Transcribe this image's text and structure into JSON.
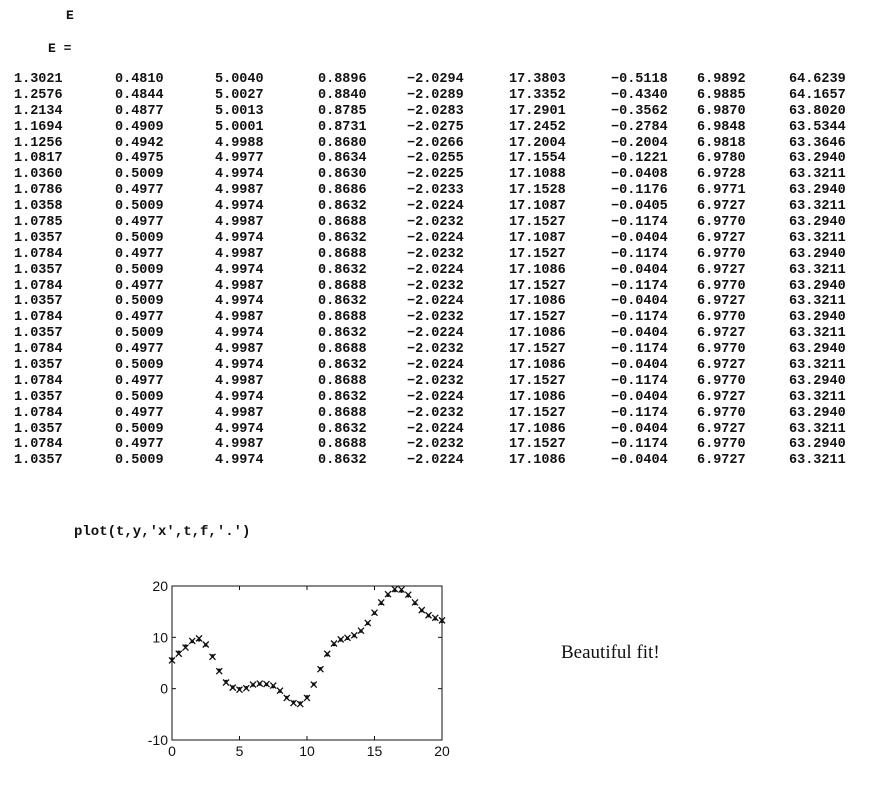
{
  "variable_name": "E",
  "variable_display": "E =",
  "matrix_rows": [
    [
      "1.3021",
      "0.4810",
      "5.0040",
      "0.8896",
      "−2.0294",
      "17.3803",
      "−0.5118",
      "6.9892",
      "64.6239"
    ],
    [
      "1.2576",
      "0.4844",
      "5.0027",
      "0.8840",
      "−2.0289",
      "17.3352",
      "−0.4340",
      "6.9885",
      "64.1657"
    ],
    [
      "1.2134",
      "0.4877",
      "5.0013",
      "0.8785",
      "−2.0283",
      "17.2901",
      "−0.3562",
      "6.9870",
      "63.8020"
    ],
    [
      "1.1694",
      "0.4909",
      "5.0001",
      "0.8731",
      "−2.0275",
      "17.2452",
      "−0.2784",
      "6.9848",
      "63.5344"
    ],
    [
      "1.1256",
      "0.4942",
      "4.9988",
      "0.8680",
      "−2.0266",
      "17.2004",
      "−0.2004",
      "6.9818",
      "63.3646"
    ],
    [
      "1.0817",
      "0.4975",
      "4.9977",
      "0.8634",
      "−2.0255",
      "17.1554",
      "−0.1221",
      "6.9780",
      "63.2940"
    ],
    [
      "1.0360",
      "0.5009",
      "4.9974",
      "0.8630",
      "−2.0225",
      "17.1088",
      "−0.0408",
      "6.9728",
      "63.3211"
    ],
    [
      "1.0786",
      "0.4977",
      "4.9987",
      "0.8686",
      "−2.0233",
      "17.1528",
      "−0.1176",
      "6.9771",
      "63.2940"
    ],
    [
      "1.0358",
      "0.5009",
      "4.9974",
      "0.8632",
      "−2.0224",
      "17.1087",
      "−0.0405",
      "6.9727",
      "63.3211"
    ],
    [
      "1.0785",
      "0.4977",
      "4.9987",
      "0.8688",
      "−2.0232",
      "17.1527",
      "−0.1174",
      "6.9770",
      "63.2940"
    ],
    [
      "1.0357",
      "0.5009",
      "4.9974",
      "0.8632",
      "−2.0224",
      "17.1087",
      "−0.0404",
      "6.9727",
      "63.3211"
    ],
    [
      "1.0784",
      "0.4977",
      "4.9987",
      "0.8688",
      "−2.0232",
      "17.1527",
      "−0.1174",
      "6.9770",
      "63.2940"
    ],
    [
      "1.0357",
      "0.5009",
      "4.9974",
      "0.8632",
      "−2.0224",
      "17.1086",
      "−0.0404",
      "6.9727",
      "63.3211"
    ],
    [
      "1.0784",
      "0.4977",
      "4.9987",
      "0.8688",
      "−2.0232",
      "17.1527",
      "−0.1174",
      "6.9770",
      "63.2940"
    ],
    [
      "1.0357",
      "0.5009",
      "4.9974",
      "0.8632",
      "−2.0224",
      "17.1086",
      "−0.0404",
      "6.9727",
      "63.3211"
    ],
    [
      "1.0784",
      "0.4977",
      "4.9987",
      "0.8688",
      "−2.0232",
      "17.1527",
      "−0.1174",
      "6.9770",
      "63.2940"
    ],
    [
      "1.0357",
      "0.5009",
      "4.9974",
      "0.8632",
      "−2.0224",
      "17.1086",
      "−0.0404",
      "6.9727",
      "63.3211"
    ],
    [
      "1.0784",
      "0.4977",
      "4.9987",
      "0.8688",
      "−2.0232",
      "17.1527",
      "−0.1174",
      "6.9770",
      "63.2940"
    ],
    [
      "1.0357",
      "0.5009",
      "4.9974",
      "0.8632",
      "−2.0224",
      "17.1086",
      "−0.0404",
      "6.9727",
      "63.3211"
    ],
    [
      "1.0784",
      "0.4977",
      "4.9987",
      "0.8688",
      "−2.0232",
      "17.1527",
      "−0.1174",
      "6.9770",
      "63.2940"
    ],
    [
      "1.0357",
      "0.5009",
      "4.9974",
      "0.8632",
      "−2.0224",
      "17.1086",
      "−0.0404",
      "6.9727",
      "63.3211"
    ],
    [
      "1.0784",
      "0.4977",
      "4.9987",
      "0.8688",
      "−2.0232",
      "17.1527",
      "−0.1174",
      "6.9770",
      "63.2940"
    ],
    [
      "1.0357",
      "0.5009",
      "4.9974",
      "0.8632",
      "−2.0224",
      "17.1086",
      "−0.0404",
      "6.9727",
      "63.3211"
    ],
    [
      "1.0784",
      "0.4977",
      "4.9987",
      "0.8688",
      "−2.0232",
      "17.1527",
      "−0.1174",
      "6.9770",
      "63.2940"
    ],
    [
      "1.0357",
      "0.5009",
      "4.9974",
      "0.8632",
      "−2.0224",
      "17.1086",
      "−0.0404",
      "6.9727",
      "63.3211"
    ]
  ],
  "command": "plot(t,y,'x',t,f,'.')",
  "annotation": "Beautiful fit!",
  "chart_data": {
    "type": "scatter",
    "title": "",
    "xlabel": "",
    "ylabel": "",
    "xlim": [
      0,
      20
    ],
    "ylim": [
      -10,
      20
    ],
    "xticks": [
      "0",
      "5",
      "10",
      "15",
      "20"
    ],
    "yticks": [
      "-10",
      "0",
      "10",
      "20"
    ],
    "grid": false,
    "series": [
      {
        "marker": "x",
        "x": [
          0,
          0.5,
          1,
          1.5,
          2,
          2.5,
          3,
          3.5,
          4,
          4.5,
          5,
          5.5,
          6,
          6.5,
          7,
          7.5,
          8,
          8.5,
          9,
          9.5,
          10,
          10.5,
          11,
          11.5,
          12,
          12.5,
          13,
          13.5,
          14,
          14.5,
          15,
          15.5,
          16,
          16.5,
          17,
          17.5,
          18,
          18.5,
          19,
          19.5,
          20
        ],
        "y": [
          5.5,
          6.8,
          8.0,
          9.3,
          9.8,
          8.6,
          6.2,
          3.4,
          1.2,
          0.2,
          -0.2,
          0.1,
          0.8,
          1.0,
          0.9,
          0.6,
          -0.4,
          -1.8,
          -2.8,
          -3.0,
          -1.8,
          0.8,
          3.8,
          6.8,
          8.8,
          9.6,
          9.9,
          10.4,
          11.3,
          12.8,
          14.8,
          16.8,
          18.4,
          19.4,
          19.3,
          18.3,
          16.8,
          15.3,
          14.3,
          13.8,
          13.3
        ]
      },
      {
        "marker": ".",
        "x": [
          0,
          0.5,
          1,
          1.5,
          2,
          2.5,
          3,
          3.5,
          4,
          4.5,
          5,
          5.5,
          6,
          6.5,
          7,
          7.5,
          8,
          8.5,
          9,
          9.5,
          10,
          10.5,
          11,
          11.5,
          12,
          12.5,
          13,
          13.5,
          14,
          14.5,
          15,
          15.5,
          16,
          16.5,
          17,
          17.5,
          18,
          18.5,
          19,
          19.5,
          20
        ],
        "y": [
          5.8,
          7.1,
          8.3,
          9.2,
          9.5,
          8.5,
          6.4,
          3.6,
          1.4,
          0.3,
          0.0,
          0.2,
          0.7,
          0.9,
          0.8,
          0.4,
          -0.5,
          -1.7,
          -2.6,
          -2.8,
          -1.6,
          0.9,
          3.9,
          6.6,
          8.6,
          9.5,
          9.8,
          10.3,
          11.2,
          12.7,
          14.7,
          16.6,
          18.2,
          19.1,
          19.0,
          18.1,
          16.6,
          15.2,
          14.2,
          13.6,
          13.1
        ]
      }
    ]
  }
}
